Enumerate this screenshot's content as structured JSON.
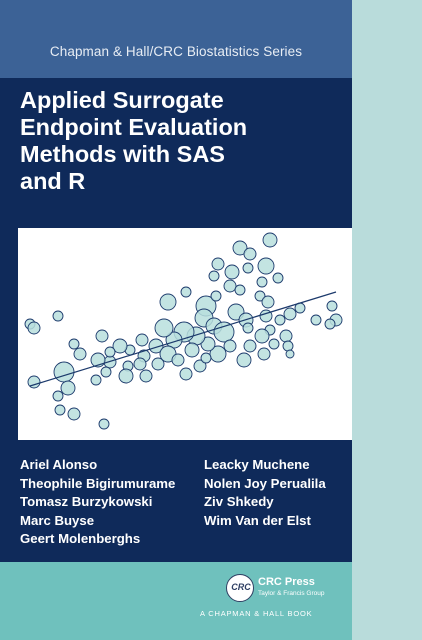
{
  "series": "Chapman & Hall/CRC Biostatistics Series",
  "title_lines": [
    "Applied Surrogate",
    "Endpoint Evaluation",
    "Methods with SAS",
    "and R"
  ],
  "authors_left": [
    "Ariel Alonso",
    "Theophile Bigirumurame",
    "Tomasz Burzykowski",
    "Marc Buyse",
    "Geert Molenberghs"
  ],
  "authors_right": [
    "Leacky Muchene",
    "Nolen Joy Perualila",
    "Ziv Shkedy",
    "Wim Van der Elst"
  ],
  "publisher": {
    "logo_mark": "CRC",
    "name": "CRC Press",
    "group": "Taylor & Francis Group",
    "imprint": "A CHAPMAN & HALL BOOK"
  },
  "colors": {
    "series_band": "#3c6296",
    "title_panel": "#0f2a5a",
    "bubble_fill": "#b8dfdd",
    "bubble_stroke": "#1c3a6c",
    "bottom_band": "#6fc1bd",
    "spine": "#b9dcdb"
  }
}
